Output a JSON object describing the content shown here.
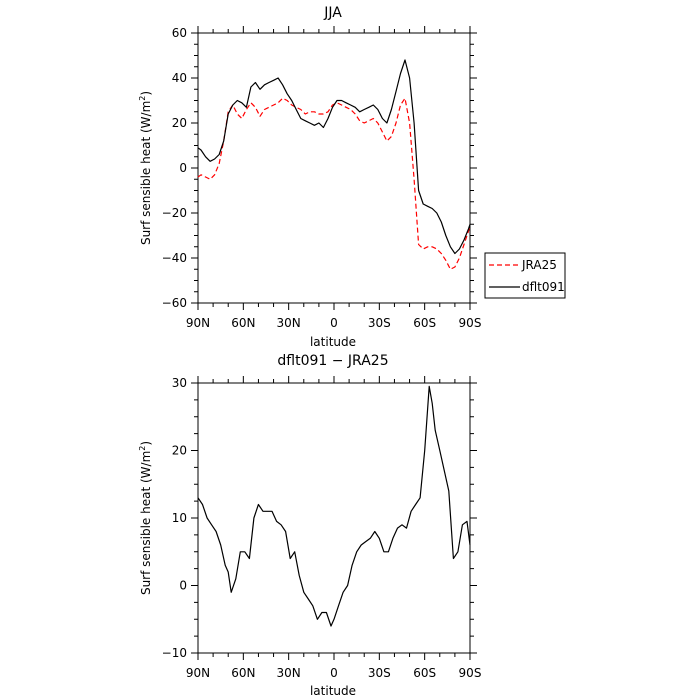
{
  "chart_data": [
    {
      "type": "line",
      "title": "JJA",
      "xlabel": "latitude",
      "ylabel": "Surf sensible heat (W/m²)",
      "ylabel_base": "Surf sensible heat (W/m",
      "ylabel_sup": "2",
      "ylabel_tail": ")",
      "xlim": [
        90,
        -90
      ],
      "ylim": [
        -60,
        60
      ],
      "xticks": [
        90,
        60,
        30,
        0,
        -30,
        -60,
        -90
      ],
      "xtick_labels": [
        "90N",
        "60N",
        "30N",
        "0",
        "30S",
        "60S",
        "90S"
      ],
      "yticks": [
        -60,
        -40,
        -20,
        0,
        20,
        40,
        60
      ],
      "ytick_labels": [
        "−60",
        "−40",
        "−20",
        "0",
        "20",
        "40",
        "60"
      ],
      "legend": "right-outside",
      "series": [
        {
          "name": "JRA25",
          "color": "#ff0000",
          "style": "dashed",
          "x": [
            90,
            88,
            85,
            82,
            79,
            76,
            73,
            70,
            67,
            64,
            61,
            58,
            55,
            52,
            49,
            46,
            43,
            40,
            37,
            34,
            31,
            28,
            25,
            22,
            19,
            16,
            13,
            10,
            7,
            4,
            1,
            -2,
            -5,
            -8,
            -11,
            -14,
            -17,
            -20,
            -23,
            -26,
            -29,
            -32,
            -35,
            -38,
            -41,
            -44,
            -47,
            -50,
            -53,
            -56,
            -59,
            -62,
            -65,
            -68,
            -71,
            -74,
            -77,
            -80,
            -83,
            -86,
            -89,
            -90
          ],
          "y": [
            -4,
            -3,
            -4,
            -5,
            -3,
            2,
            12,
            25,
            28,
            24,
            22,
            26,
            29,
            27,
            23,
            26,
            27,
            28,
            29,
            31,
            30,
            28,
            27,
            26,
            24,
            25,
            25,
            24,
            24,
            25,
            28,
            29,
            28,
            27,
            26,
            24,
            21,
            20,
            21,
            22,
            20,
            16,
            12,
            14,
            20,
            28,
            31,
            20,
            -5,
            -34,
            -36,
            -35,
            -35,
            -36,
            -38,
            -41,
            -45,
            -44,
            -40,
            -34,
            -28,
            -26
          ]
        },
        {
          "name": "dflt091",
          "color": "#000000",
          "style": "solid",
          "x": [
            90,
            88,
            85,
            82,
            79,
            76,
            73,
            70,
            67,
            64,
            61,
            58,
            55,
            52,
            49,
            46,
            43,
            40,
            37,
            34,
            31,
            28,
            25,
            22,
            19,
            16,
            13,
            10,
            7,
            4,
            1,
            -2,
            -5,
            -8,
            -11,
            -14,
            -17,
            -20,
            -23,
            -26,
            -29,
            -32,
            -35,
            -38,
            -41,
            -44,
            -47,
            -50,
            -53,
            -56,
            -59,
            -62,
            -65,
            -68,
            -71,
            -74,
            -77,
            -80,
            -83,
            -86,
            -89,
            -90
          ],
          "y": [
            9,
            8,
            5,
            3,
            4,
            6,
            12,
            24,
            28,
            30,
            29,
            27,
            36,
            38,
            35,
            37,
            38,
            39,
            40,
            37,
            33,
            30,
            26,
            22,
            21,
            20,
            19,
            20,
            18,
            22,
            27,
            30,
            30,
            29,
            28,
            27,
            25,
            26,
            27,
            28,
            26,
            22,
            20,
            26,
            34,
            42,
            48,
            40,
            20,
            -10,
            -16,
            -17,
            -18,
            -20,
            -24,
            -30,
            -35,
            -38,
            -36,
            -32,
            -27,
            -25
          ]
        }
      ]
    },
    {
      "type": "line",
      "title": "dflt091 − JRA25",
      "xlabel": "latitude",
      "ylabel": "Surf sensible heat (W/m²)",
      "ylabel_base": "Surf sensible heat (W/m",
      "ylabel_sup": "2",
      "ylabel_tail": ")",
      "xlim": [
        90,
        -90
      ],
      "ylim": [
        -10,
        30
      ],
      "xticks": [
        90,
        60,
        30,
        0,
        -30,
        -60,
        -90
      ],
      "xtick_labels": [
        "90N",
        "60N",
        "30N",
        "0",
        "30S",
        "60S",
        "90S"
      ],
      "yticks": [
        -10,
        0,
        10,
        20,
        30
      ],
      "ytick_labels": [
        "−10",
        "0",
        "10",
        "20",
        "30"
      ],
      "series": [
        {
          "color": "#000000",
          "style": "solid",
          "x": [
            90,
            87,
            84,
            81,
            78,
            75,
            72,
            70,
            68,
            65,
            62,
            59,
            56,
            53,
            50,
            47,
            44,
            41,
            38,
            35,
            32,
            29,
            26,
            23,
            20,
            17,
            14,
            11,
            8,
            5,
            2,
            0,
            -3,
            -6,
            -9,
            -12,
            -15,
            -18,
            -21,
            -24,
            -27,
            -30,
            -33,
            -36,
            -39,
            -42,
            -45,
            -48,
            -51,
            -54,
            -57,
            -60,
            -63,
            -65,
            -67,
            -70,
            -73,
            -76,
            -79,
            -82,
            -85,
            -88,
            -90
          ],
          "y": [
            13,
            12,
            10,
            9,
            8,
            6,
            3,
            2,
            -1,
            1,
            5,
            5,
            4,
            10,
            12,
            11,
            11,
            11,
            9.5,
            9,
            8,
            4,
            5,
            1.5,
            -1,
            -2,
            -3,
            -5,
            -4,
            -4,
            -6,
            -5,
            -3,
            -1,
            0,
            3,
            5,
            6,
            6.5,
            7,
            8,
            7,
            5,
            5,
            7,
            8.5,
            9,
            8.5,
            11,
            12,
            13,
            20,
            29.5,
            27,
            23,
            20,
            17,
            14,
            4,
            5,
            9,
            9.5,
            6
          ]
        }
      ]
    }
  ]
}
